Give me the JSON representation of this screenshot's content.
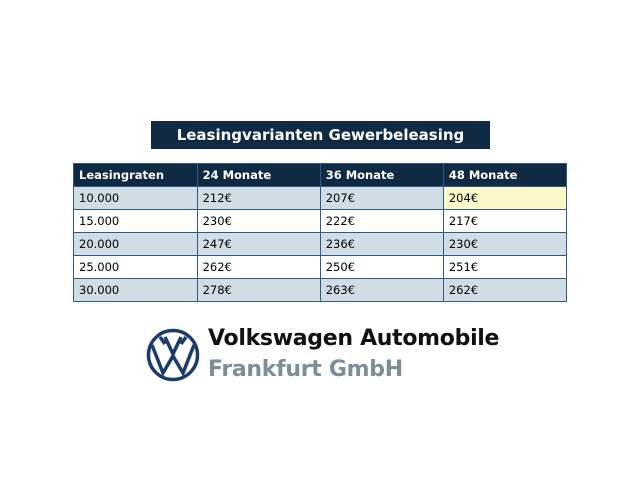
{
  "title": "Leasingvarianten Gewerbeleasing",
  "table": {
    "headers": [
      "Leasingraten",
      "24 Monate",
      "36 Monate",
      "48 Monate"
    ],
    "rows": [
      [
        "10.000",
        "212€",
        "207€",
        "204€"
      ],
      [
        "15.000",
        "230€",
        "222€",
        "217€"
      ],
      [
        "20.000",
        "247€",
        "236€",
        "230€"
      ],
      [
        "25.000",
        "262€",
        "250€",
        "251€"
      ],
      [
        "30.000",
        "278€",
        "263€",
        "262€"
      ]
    ],
    "highlighted_cell": "204€"
  },
  "brand": {
    "line1": "Volkswagen Automobile",
    "line2": "Frankfurt GmbH",
    "logo": "vw-logo-icon"
  },
  "colors": {
    "header": "#112a44",
    "stripe": "#d0dde5",
    "highlight": "#fdf8c8",
    "logo": "#1c3a6b"
  }
}
